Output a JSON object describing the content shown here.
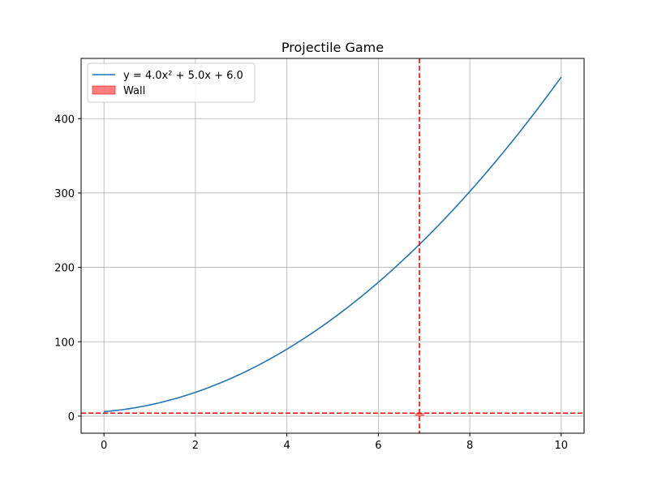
{
  "chart_data": {
    "type": "line",
    "title": "Projectile Game",
    "xlabel": "",
    "ylabel": "",
    "xlim": [
      -0.5,
      10.5
    ],
    "ylim": [
      -23,
      481
    ],
    "x_ticks": [
      0,
      2,
      4,
      6,
      8,
      10
    ],
    "y_ticks": [
      0,
      100,
      200,
      300,
      400
    ],
    "grid": true,
    "legend_position": "upper-left",
    "series": [
      {
        "name": "y = 4.0x² + 5.0x + 6.0",
        "color": "#1f77b4",
        "equation": {
          "a": 4.0,
          "b": 5.0,
          "c": 6.0
        },
        "x_range": [
          0,
          10
        ],
        "x": [
          0,
          1,
          2,
          3,
          4,
          5,
          6,
          7,
          8,
          9,
          10
        ],
        "y": [
          6,
          15,
          32,
          57,
          90,
          131,
          180,
          237,
          302,
          375,
          456
        ]
      }
    ],
    "wall": {
      "name": "Wall",
      "color": "#ff0000",
      "x": 6.9,
      "height": 4,
      "width": 0.2,
      "fill_alpha": 0.5
    }
  }
}
